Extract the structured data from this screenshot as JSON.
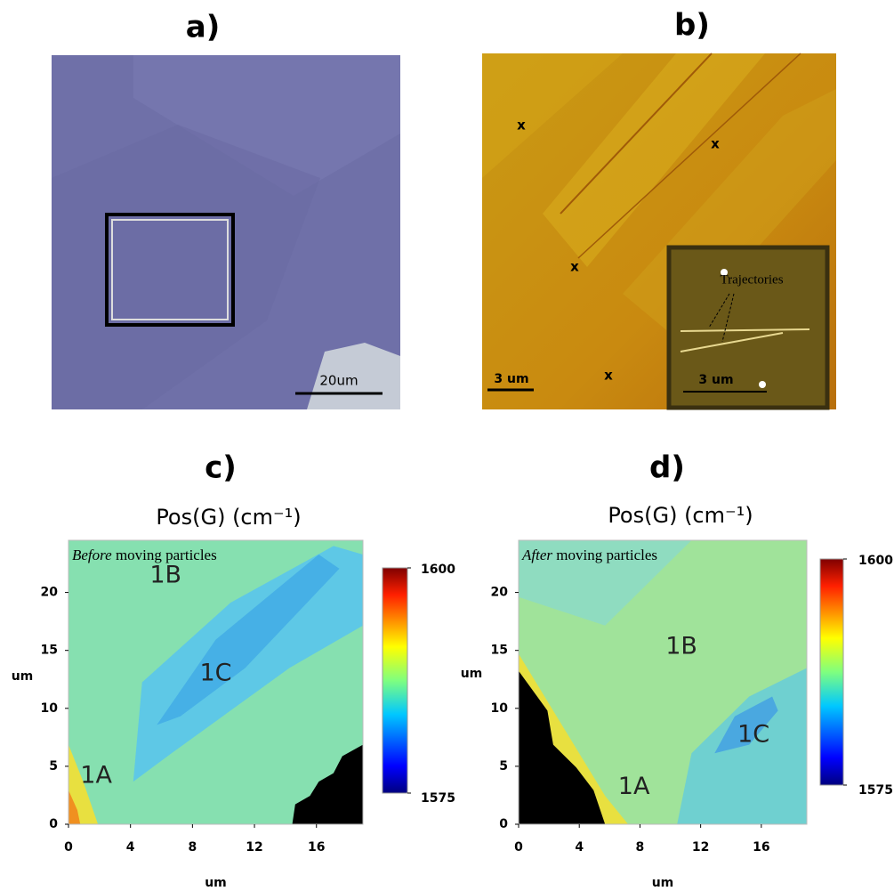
{
  "panels": {
    "a": {
      "label": "a)",
      "scale_bar": "20um"
    },
    "b": {
      "label": "b)",
      "markers": [
        "x",
        "x",
        "x",
        "x"
      ],
      "scale_bar": "3 um",
      "inset_label": "Trajectories",
      "inset_scale_bar": "3 um"
    }
  },
  "chart_data": [
    {
      "type": "heatmap",
      "panel_label": "c)",
      "title": "Pos(G) (cm⁻¹)",
      "annotation": {
        "emphasis": "Before",
        "text": "moving particles"
      },
      "regions": [
        "1B",
        "1C",
        "1A"
      ],
      "xlabel": "um",
      "ylabel": "um",
      "xlim": [
        0,
        19
      ],
      "ylim": [
        0,
        24.5
      ],
      "xticks": [
        0,
        4,
        8,
        12,
        16
      ],
      "yticks": [
        0,
        5,
        10,
        15,
        20
      ],
      "colorbar": {
        "clim": [
          1575,
          1600
        ],
        "ticks": [
          1575,
          1600
        ]
      }
    },
    {
      "type": "heatmap",
      "panel_label": "d)",
      "title": "Pos(G) (cm⁻¹)",
      "annotation": {
        "emphasis": "After",
        "text": "moving particles"
      },
      "regions": [
        "1B",
        "1C",
        "1A"
      ],
      "xlabel": "um",
      "ylabel": "um",
      "xlim": [
        0,
        19
      ],
      "ylim": [
        0,
        24.5
      ],
      "xticks": [
        0,
        4,
        8,
        12,
        16
      ],
      "yticks": [
        0,
        5,
        10,
        15,
        20
      ],
      "colorbar": {
        "clim": [
          1575,
          1600
        ],
        "ticks": [
          1575,
          1600
        ]
      }
    }
  ]
}
